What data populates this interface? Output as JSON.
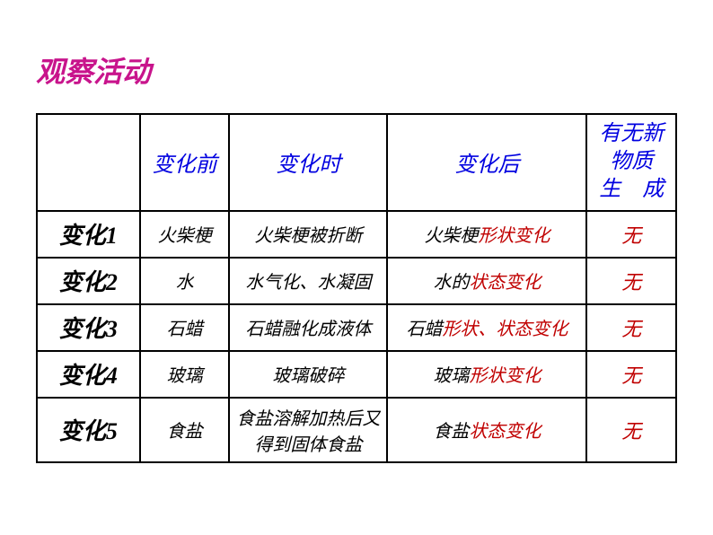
{
  "title": "观察活动",
  "colors": {
    "title": "#c8148c",
    "blue": "#0000e0",
    "red": "#c00000",
    "black": "#000000"
  },
  "headers": {
    "rowlabel": "",
    "before": "变化前",
    "during": "变化时",
    "after": "变化后",
    "new_line1": "有无新",
    "new_line2": "物质",
    "new_line3": "生　成"
  },
  "rows": [
    {
      "label": "变化1",
      "before": "火柴梗",
      "during": "火柴梗被折断",
      "after_black": "火柴梗",
      "after_red": "形状变化",
      "new": "无"
    },
    {
      "label": "变化2",
      "before": "水",
      "during": "水气化、水凝固",
      "after_black": "水的",
      "after_red": "状态变化",
      "new": "无"
    },
    {
      "label": "变化3",
      "before": "石蜡",
      "during": "石蜡融化成液体",
      "after_black": "石蜡",
      "after_red": "形状、状态变化",
      "new": "无"
    },
    {
      "label": "变化4",
      "before": "玻璃",
      "during": "玻璃破碎",
      "after_black": "玻璃",
      "after_red": "形状变化",
      "new": "无"
    },
    {
      "label": "变化5",
      "before": "食盐",
      "during": "食盐溶解加热后又得到固体食盐",
      "after_black": "食盐",
      "after_red": "状态变化",
      "new": "无"
    }
  ]
}
